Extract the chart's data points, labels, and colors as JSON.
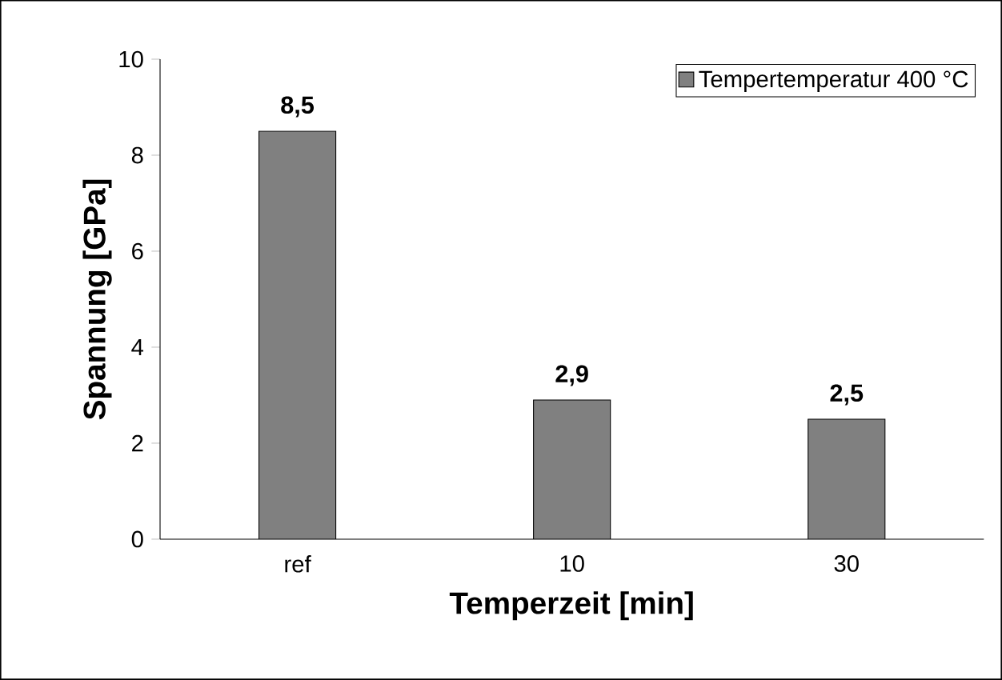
{
  "chart_data": {
    "type": "bar",
    "xlabel": "Temperzeit [min]",
    "ylabel": "Spannung [GPa]",
    "categories": [
      "ref",
      "10",
      "30"
    ],
    "series": [
      {
        "name": "Tempertemperatur 400 °C",
        "color": "#808080",
        "values": [
          8.5,
          2.9,
          2.5
        ],
        "value_labels": [
          "8,5",
          "2,9",
          "2,5"
        ]
      }
    ],
    "ylim": [
      0,
      10
    ],
    "yticks": [
      0,
      2,
      4,
      6,
      8,
      10
    ],
    "legend": "top right",
    "grid": false
  }
}
